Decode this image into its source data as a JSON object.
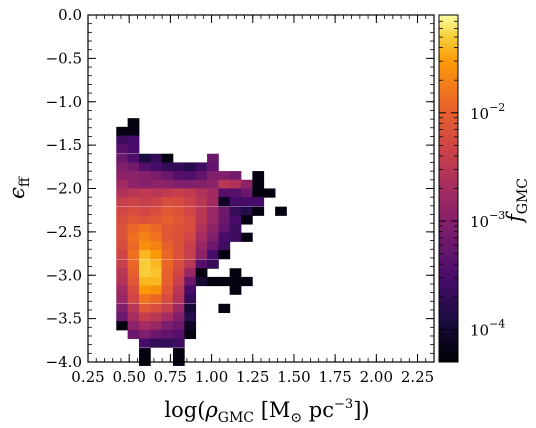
{
  "chart_data": {
    "type": "heatmap",
    "title": "",
    "xlabel_parts": {
      "prefix": "log(",
      "rho": "ρ",
      "rho_sub": "GMC",
      "units_open": " [M",
      "sun": "⊙",
      "units_mid": " pc",
      "exp": "−3",
      "units_close": "])"
    },
    "ylabel_parts": {
      "main": "ϵ",
      "sub": "ff"
    },
    "colorbar_label_parts": {
      "main": "f",
      "sub": "GMC"
    },
    "xlim": [
      0.25,
      2.35
    ],
    "ylim": [
      -4.0,
      0.0
    ],
    "x_ticks": [
      0.25,
      0.5,
      0.75,
      1.0,
      1.25,
      1.5,
      1.75,
      2.0,
      2.25
    ],
    "x_tick_labels": [
      "0.25",
      "0.50",
      "0.75",
      "1.00",
      "1.25",
      "1.50",
      "1.75",
      "2.00",
      "2.25"
    ],
    "y_ticks": [
      0.0,
      -0.5,
      -1.0,
      -1.5,
      -2.0,
      -2.5,
      -3.0,
      -3.5,
      -4.0
    ],
    "y_tick_labels": [
      "0.0",
      "−0.5",
      "−1.0",
      "−1.5",
      "−2.0",
      "−2.5",
      "−3.0",
      "−3.5",
      "−4.0"
    ],
    "colorbar": {
      "scale": "log",
      "range": [
        5e-05,
        0.08
      ],
      "ticks": [
        {
          "value": 0.01,
          "base": "10",
          "exp": "−2"
        },
        {
          "value": 0.001,
          "base": "10",
          "exp": "−3"
        },
        {
          "value": 0.0001,
          "base": "10",
          "exp": "−4"
        }
      ],
      "colormap": "inferno"
    },
    "bin_width_x": 0.06885,
    "bin_height_y": 0.1017,
    "bins": [
      {
        "x": 0.525,
        "y": -1.24,
        "v": 6e-05
      },
      {
        "x": 0.456,
        "y": -1.34,
        "v": 6e-05
      },
      {
        "x": 0.525,
        "y": -1.34,
        "v": 6e-05
      },
      {
        "x": 0.456,
        "y": -1.44,
        "v": 0.00025
      },
      {
        "x": 0.525,
        "y": -1.44,
        "v": 0.0003
      },
      {
        "x": 0.456,
        "y": -1.54,
        "v": 0.0004
      },
      {
        "x": 0.525,
        "y": -1.54,
        "v": 0.0003
      },
      {
        "x": 0.456,
        "y": -1.65,
        "v": 0.0006
      },
      {
        "x": 0.525,
        "y": -1.65,
        "v": 0.00035
      },
      {
        "x": 0.594,
        "y": -1.65,
        "v": 0.00012
      },
      {
        "x": 0.663,
        "y": -1.65,
        "v": 0.0002
      },
      {
        "x": 0.731,
        "y": -1.65,
        "v": 6e-05
      },
      {
        "x": 1.007,
        "y": -1.65,
        "v": 0.0006
      },
      {
        "x": 0.456,
        "y": -1.75,
        "v": 0.0009
      },
      {
        "x": 0.525,
        "y": -1.75,
        "v": 0.0007
      },
      {
        "x": 0.594,
        "y": -1.75,
        "v": 0.0004
      },
      {
        "x": 0.663,
        "y": -1.75,
        "v": 0.0003
      },
      {
        "x": 0.731,
        "y": -1.75,
        "v": 0.0002
      },
      {
        "x": 0.8,
        "y": -1.75,
        "v": 0.0002
      },
      {
        "x": 0.869,
        "y": -1.75,
        "v": 0.00015
      },
      {
        "x": 0.938,
        "y": -1.75,
        "v": 0.00025
      },
      {
        "x": 1.007,
        "y": -1.75,
        "v": 0.0005
      },
      {
        "x": 0.456,
        "y": -1.85,
        "v": 0.0012
      },
      {
        "x": 0.525,
        "y": -1.85,
        "v": 0.0011
      },
      {
        "x": 0.594,
        "y": -1.85,
        "v": 0.001
      },
      {
        "x": 0.663,
        "y": -1.85,
        "v": 0.0008
      },
      {
        "x": 0.731,
        "y": -1.85,
        "v": 0.0006
      },
      {
        "x": 0.8,
        "y": -1.85,
        "v": 0.0004
      },
      {
        "x": 0.869,
        "y": -1.85,
        "v": 0.00035
      },
      {
        "x": 0.938,
        "y": -1.85,
        "v": 0.0005
      },
      {
        "x": 1.007,
        "y": -1.85,
        "v": 0.0009
      },
      {
        "x": 1.076,
        "y": -1.85,
        "v": 0.0009
      },
      {
        "x": 1.144,
        "y": -1.85,
        "v": 0.0007
      },
      {
        "x": 1.282,
        "y": -1.85,
        "v": 6e-05
      },
      {
        "x": 0.456,
        "y": -1.95,
        "v": 0.0018
      },
      {
        "x": 0.525,
        "y": -1.95,
        "v": 0.0012
      },
      {
        "x": 0.594,
        "y": -1.95,
        "v": 0.001
      },
      {
        "x": 0.663,
        "y": -1.95,
        "v": 0.0012
      },
      {
        "x": 0.731,
        "y": -1.95,
        "v": 0.0011
      },
      {
        "x": 0.8,
        "y": -1.95,
        "v": 0.0009
      },
      {
        "x": 0.869,
        "y": -1.95,
        "v": 0.0009
      },
      {
        "x": 0.938,
        "y": -1.95,
        "v": 0.001
      },
      {
        "x": 1.007,
        "y": -1.95,
        "v": 0.0011
      },
      {
        "x": 1.076,
        "y": -1.95,
        "v": 0.003
      },
      {
        "x": 1.144,
        "y": -1.95,
        "v": 0.0025
      },
      {
        "x": 1.213,
        "y": -1.95,
        "v": 0.0012
      },
      {
        "x": 1.282,
        "y": -1.95,
        "v": 6e-05
      },
      {
        "x": 0.456,
        "y": -2.05,
        "v": 0.0025
      },
      {
        "x": 0.525,
        "y": -2.05,
        "v": 0.003
      },
      {
        "x": 0.594,
        "y": -2.05,
        "v": 0.0035
      },
      {
        "x": 0.663,
        "y": -2.05,
        "v": 0.003
      },
      {
        "x": 0.731,
        "y": -2.05,
        "v": 0.0035
      },
      {
        "x": 0.8,
        "y": -2.05,
        "v": 0.004
      },
      {
        "x": 0.869,
        "y": -2.05,
        "v": 0.0035
      },
      {
        "x": 0.938,
        "y": -2.05,
        "v": 0.0025
      },
      {
        "x": 1.007,
        "y": -2.05,
        "v": 0.0018
      },
      {
        "x": 1.076,
        "y": -2.05,
        "v": 0.0004
      },
      {
        "x": 1.144,
        "y": -2.05,
        "v": 0.0004
      },
      {
        "x": 1.213,
        "y": -2.05,
        "v": 0.0006
      },
      {
        "x": 1.282,
        "y": -2.05,
        "v": 6e-05
      },
      {
        "x": 1.351,
        "y": -2.05,
        "v": 6e-05
      },
      {
        "x": 0.456,
        "y": -2.15,
        "v": 0.004
      },
      {
        "x": 0.525,
        "y": -2.15,
        "v": 0.0045
      },
      {
        "x": 0.594,
        "y": -2.15,
        "v": 0.004
      },
      {
        "x": 0.663,
        "y": -2.15,
        "v": 0.0045
      },
      {
        "x": 0.731,
        "y": -2.15,
        "v": 0.006
      },
      {
        "x": 0.8,
        "y": -2.15,
        "v": 0.006
      },
      {
        "x": 0.869,
        "y": -2.15,
        "v": 0.0045
      },
      {
        "x": 0.938,
        "y": -2.15,
        "v": 0.003
      },
      {
        "x": 1.007,
        "y": -2.15,
        "v": 0.0018
      },
      {
        "x": 1.076,
        "y": -2.15,
        "v": 8e-05
      },
      {
        "x": 1.144,
        "y": -2.15,
        "v": 0.0003
      },
      {
        "x": 1.213,
        "y": -2.15,
        "v": 0.0003
      },
      {
        "x": 1.282,
        "y": -2.15,
        "v": 0.0003
      },
      {
        "x": 0.456,
        "y": -2.26,
        "v": 0.005
      },
      {
        "x": 0.525,
        "y": -2.26,
        "v": 0.006
      },
      {
        "x": 0.594,
        "y": -2.26,
        "v": 0.005
      },
      {
        "x": 0.663,
        "y": -2.26,
        "v": 0.006
      },
      {
        "x": 0.731,
        "y": -2.26,
        "v": 0.008
      },
      {
        "x": 0.8,
        "y": -2.26,
        "v": 0.007
      },
      {
        "x": 0.869,
        "y": -2.26,
        "v": 0.005
      },
      {
        "x": 0.938,
        "y": -2.26,
        "v": 0.003
      },
      {
        "x": 1.007,
        "y": -2.26,
        "v": 0.0015
      },
      {
        "x": 1.076,
        "y": -2.26,
        "v": 0.0006
      },
      {
        "x": 1.144,
        "y": -2.26,
        "v": 0.0002
      },
      {
        "x": 1.213,
        "y": -2.26,
        "v": 0.00015
      },
      {
        "x": 1.282,
        "y": -2.26,
        "v": 6e-05
      },
      {
        "x": 1.42,
        "y": -2.26,
        "v": 6e-05
      },
      {
        "x": 0.456,
        "y": -2.36,
        "v": 0.006
      },
      {
        "x": 0.525,
        "y": -2.36,
        "v": 0.008
      },
      {
        "x": 0.594,
        "y": -2.36,
        "v": 0.007
      },
      {
        "x": 0.663,
        "y": -2.36,
        "v": 0.008
      },
      {
        "x": 0.731,
        "y": -2.36,
        "v": 0.01
      },
      {
        "x": 0.8,
        "y": -2.36,
        "v": 0.008
      },
      {
        "x": 0.869,
        "y": -2.36,
        "v": 0.006
      },
      {
        "x": 0.938,
        "y": -2.36,
        "v": 0.003
      },
      {
        "x": 1.007,
        "y": -2.36,
        "v": 0.0015
      },
      {
        "x": 1.076,
        "y": -2.36,
        "v": 0.0006
      },
      {
        "x": 1.144,
        "y": -2.36,
        "v": 0.0003
      },
      {
        "x": 1.213,
        "y": -2.36,
        "v": 6e-05
      },
      {
        "x": 0.456,
        "y": -2.46,
        "v": 0.007
      },
      {
        "x": 0.525,
        "y": -2.46,
        "v": 0.012
      },
      {
        "x": 0.594,
        "y": -2.46,
        "v": 0.015
      },
      {
        "x": 0.663,
        "y": -2.46,
        "v": 0.012
      },
      {
        "x": 0.731,
        "y": -2.46,
        "v": 0.008
      },
      {
        "x": 0.8,
        "y": -2.46,
        "v": 0.007
      },
      {
        "x": 0.869,
        "y": -2.46,
        "v": 0.006
      },
      {
        "x": 0.938,
        "y": -2.46,
        "v": 0.0025
      },
      {
        "x": 1.007,
        "y": -2.46,
        "v": 0.0012
      },
      {
        "x": 1.076,
        "y": -2.46,
        "v": 0.0005
      },
      {
        "x": 1.144,
        "y": -2.46,
        "v": 0.00025
      },
      {
        "x": 0.456,
        "y": -2.56,
        "v": 0.007
      },
      {
        "x": 0.525,
        "y": -2.56,
        "v": 0.014
      },
      {
        "x": 0.594,
        "y": -2.56,
        "v": 0.02
      },
      {
        "x": 0.663,
        "y": -2.56,
        "v": 0.015
      },
      {
        "x": 0.731,
        "y": -2.56,
        "v": 0.008
      },
      {
        "x": 0.8,
        "y": -2.56,
        "v": 0.007
      },
      {
        "x": 0.869,
        "y": -2.56,
        "v": 0.005
      },
      {
        "x": 0.938,
        "y": -2.56,
        "v": 0.002
      },
      {
        "x": 1.007,
        "y": -2.56,
        "v": 0.0009
      },
      {
        "x": 1.076,
        "y": -2.56,
        "v": 0.0003
      },
      {
        "x": 1.144,
        "y": -2.56,
        "v": 0.00025
      },
      {
        "x": 1.213,
        "y": -2.56,
        "v": 6e-05
      },
      {
        "x": 0.456,
        "y": -2.66,
        "v": 0.006
      },
      {
        "x": 0.525,
        "y": -2.66,
        "v": 0.012
      },
      {
        "x": 0.594,
        "y": -2.66,
        "v": 0.025
      },
      {
        "x": 0.663,
        "y": -2.66,
        "v": 0.02
      },
      {
        "x": 0.731,
        "y": -2.66,
        "v": 0.01
      },
      {
        "x": 0.8,
        "y": -2.66,
        "v": 0.007
      },
      {
        "x": 0.869,
        "y": -2.66,
        "v": 0.004
      },
      {
        "x": 0.938,
        "y": -2.66,
        "v": 0.0015
      },
      {
        "x": 1.007,
        "y": -2.66,
        "v": 0.0006
      },
      {
        "x": 1.076,
        "y": -2.66,
        "v": 0.00025
      },
      {
        "x": 0.456,
        "y": -2.76,
        "v": 0.005
      },
      {
        "x": 0.525,
        "y": -2.76,
        "v": 0.014
      },
      {
        "x": 0.594,
        "y": -2.76,
        "v": 0.04
      },
      {
        "x": 0.663,
        "y": -2.76,
        "v": 0.03
      },
      {
        "x": 0.731,
        "y": -2.76,
        "v": 0.012
      },
      {
        "x": 0.8,
        "y": -2.76,
        "v": 0.007
      },
      {
        "x": 0.869,
        "y": -2.76,
        "v": 0.004
      },
      {
        "x": 0.938,
        "y": -2.76,
        "v": 0.0012
      },
      {
        "x": 1.007,
        "y": -2.76,
        "v": 0.0003
      },
      {
        "x": 1.076,
        "y": -2.76,
        "v": 6e-05
      },
      {
        "x": 0.456,
        "y": -2.87,
        "v": 0.004
      },
      {
        "x": 0.525,
        "y": -2.87,
        "v": 0.012
      },
      {
        "x": 0.594,
        "y": -2.87,
        "v": 0.05
      },
      {
        "x": 0.663,
        "y": -2.87,
        "v": 0.04
      },
      {
        "x": 0.731,
        "y": -2.87,
        "v": 0.012
      },
      {
        "x": 0.8,
        "y": -2.87,
        "v": 0.006
      },
      {
        "x": 0.869,
        "y": -2.87,
        "v": 0.003
      },
      {
        "x": 0.938,
        "y": -2.87,
        "v": 0.0004
      },
      {
        "x": 1.007,
        "y": -2.87,
        "v": 0.0002
      },
      {
        "x": 0.456,
        "y": -2.97,
        "v": 0.003
      },
      {
        "x": 0.525,
        "y": -2.97,
        "v": 0.01
      },
      {
        "x": 0.594,
        "y": -2.97,
        "v": 0.05
      },
      {
        "x": 0.663,
        "y": -2.97,
        "v": 0.045
      },
      {
        "x": 0.731,
        "y": -2.97,
        "v": 0.01
      },
      {
        "x": 0.8,
        "y": -2.97,
        "v": 0.005
      },
      {
        "x": 0.869,
        "y": -2.97,
        "v": 0.0015
      },
      {
        "x": 0.938,
        "y": -2.97,
        "v": 6e-05
      },
      {
        "x": 1.144,
        "y": -2.97,
        "v": 6e-05
      },
      {
        "x": 0.456,
        "y": -3.07,
        "v": 0.0025
      },
      {
        "x": 0.525,
        "y": -3.07,
        "v": 0.008
      },
      {
        "x": 0.594,
        "y": -3.07,
        "v": 0.04
      },
      {
        "x": 0.663,
        "y": -3.07,
        "v": 0.04
      },
      {
        "x": 0.731,
        "y": -3.07,
        "v": 0.01
      },
      {
        "x": 0.8,
        "y": -3.07,
        "v": 0.004
      },
      {
        "x": 0.869,
        "y": -3.07,
        "v": 0.0006
      },
      {
        "x": 0.938,
        "y": -3.07,
        "v": 0.0001
      },
      {
        "x": 1.007,
        "y": -3.07,
        "v": 6e-05
      },
      {
        "x": 1.076,
        "y": -3.07,
        "v": 6e-05
      },
      {
        "x": 1.144,
        "y": -3.07,
        "v": 6e-05
      },
      {
        "x": 1.213,
        "y": -3.07,
        "v": 6e-05
      },
      {
        "x": 0.456,
        "y": -3.17,
        "v": 0.0018
      },
      {
        "x": 0.525,
        "y": -3.17,
        "v": 0.006
      },
      {
        "x": 0.594,
        "y": -3.17,
        "v": 0.03
      },
      {
        "x": 0.663,
        "y": -3.17,
        "v": 0.025
      },
      {
        "x": 0.731,
        "y": -3.17,
        "v": 0.008
      },
      {
        "x": 0.8,
        "y": -3.17,
        "v": 0.003
      },
      {
        "x": 0.869,
        "y": -3.17,
        "v": 0.0003
      },
      {
        "x": 1.144,
        "y": -3.17,
        "v": 6e-05
      },
      {
        "x": 0.456,
        "y": -3.27,
        "v": 0.0015
      },
      {
        "x": 0.525,
        "y": -3.27,
        "v": 0.005
      },
      {
        "x": 0.594,
        "y": -3.27,
        "v": 0.015
      },
      {
        "x": 0.663,
        "y": -3.27,
        "v": 0.012
      },
      {
        "x": 0.731,
        "y": -3.27,
        "v": 0.006
      },
      {
        "x": 0.8,
        "y": -3.27,
        "v": 0.0025
      },
      {
        "x": 0.869,
        "y": -3.27,
        "v": 0.0002
      },
      {
        "x": 0.456,
        "y": -3.38,
        "v": 0.0009
      },
      {
        "x": 0.525,
        "y": -3.38,
        "v": 0.003
      },
      {
        "x": 0.594,
        "y": -3.38,
        "v": 0.008
      },
      {
        "x": 0.663,
        "y": -3.38,
        "v": 0.006
      },
      {
        "x": 0.731,
        "y": -3.38,
        "v": 0.004
      },
      {
        "x": 0.8,
        "y": -3.38,
        "v": 0.0015
      },
      {
        "x": 0.869,
        "y": -3.38,
        "v": 0.0001
      },
      {
        "x": 1.076,
        "y": -3.38,
        "v": 6e-05
      },
      {
        "x": 0.456,
        "y": -3.48,
        "v": 0.0006
      },
      {
        "x": 0.525,
        "y": -3.48,
        "v": 0.002
      },
      {
        "x": 0.594,
        "y": -3.48,
        "v": 0.004
      },
      {
        "x": 0.663,
        "y": -3.48,
        "v": 0.003
      },
      {
        "x": 0.731,
        "y": -3.48,
        "v": 0.002
      },
      {
        "x": 0.8,
        "y": -3.48,
        "v": 0.0009
      },
      {
        "x": 0.869,
        "y": -3.48,
        "v": 0.00015
      },
      {
        "x": 0.456,
        "y": -3.58,
        "v": 6e-05
      },
      {
        "x": 0.525,
        "y": -3.58,
        "v": 0.0012
      },
      {
        "x": 0.594,
        "y": -3.58,
        "v": 0.002
      },
      {
        "x": 0.663,
        "y": -3.58,
        "v": 0.0015
      },
      {
        "x": 0.731,
        "y": -3.58,
        "v": 0.0008
      },
      {
        "x": 0.8,
        "y": -3.58,
        "v": 0.0006
      },
      {
        "x": 0.869,
        "y": -3.58,
        "v": 8e-05
      },
      {
        "x": 0.525,
        "y": -3.68,
        "v": 0.0006
      },
      {
        "x": 0.594,
        "y": -3.68,
        "v": 0.0009
      },
      {
        "x": 0.663,
        "y": -3.68,
        "v": 0.0006
      },
      {
        "x": 0.731,
        "y": -3.68,
        "v": 0.0005
      },
      {
        "x": 0.8,
        "y": -3.68,
        "v": 0.0004
      },
      {
        "x": 0.869,
        "y": -3.68,
        "v": 6e-05
      },
      {
        "x": 0.594,
        "y": -3.78,
        "v": 0.0003
      },
      {
        "x": 0.663,
        "y": -3.78,
        "v": 0.0002
      },
      {
        "x": 0.731,
        "y": -3.78,
        "v": 0.0002
      },
      {
        "x": 0.8,
        "y": -3.78,
        "v": 0.00025
      },
      {
        "x": 0.594,
        "y": -3.89,
        "v": 6e-05
      },
      {
        "x": 0.8,
        "y": -3.89,
        "v": 6e-05
      },
      {
        "x": 0.594,
        "y": -3.99,
        "v": 6e-05
      },
      {
        "x": 0.8,
        "y": -3.99,
        "v": 6e-05
      }
    ]
  }
}
